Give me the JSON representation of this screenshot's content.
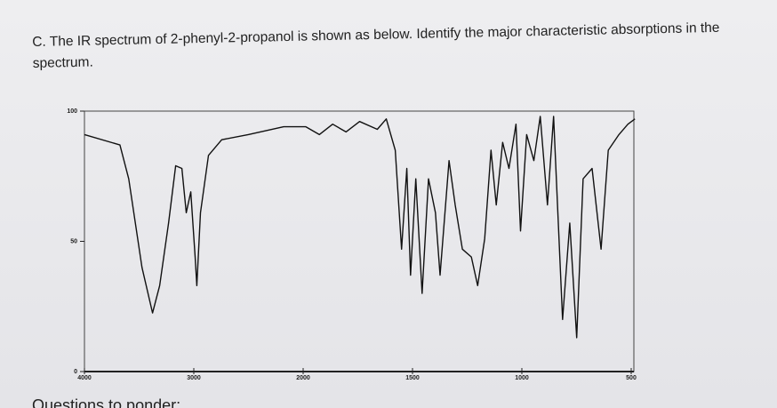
{
  "heading": "C. The IR spectrum of 2-phenyl-2-propanol is shown as below. Identify the major characteristic absorptions in the spectrum.",
  "footer": "Questions to ponder:",
  "chart_data": {
    "type": "line",
    "x": [
      4000,
      3676,
      3595,
      3474,
      3377,
      3312,
      3231,
      3166,
      3109,
      3069,
      3028,
      2988,
      2972,
      2939,
      2866,
      2745,
      2502,
      2178,
      1988,
      1926,
      1865,
      1804,
      1742,
      1661,
      1620,
      1579,
      1550,
      1526,
      1509,
      1485,
      1456,
      1427,
      1395,
      1374,
      1333,
      1305,
      1272,
      1231,
      1202,
      1170,
      1141,
      1117,
      1088,
      1059,
      1027,
      1006,
      978,
      945,
      916,
      883,
      855,
      814,
      781,
      749,
      720,
      679,
      638,
      605,
      556,
      515,
      483
    ],
    "series": [
      {
        "color": "#111111",
        "values": [
          91,
          87,
          74,
          40,
          22.5,
          33,
          57,
          79,
          78,
          61,
          69,
          44,
          33,
          61,
          83,
          89,
          91,
          94,
          94,
          91,
          95,
          92,
          96,
          93,
          97,
          85,
          47,
          78,
          37,
          74,
          30,
          74,
          61,
          37,
          81,
          64,
          47,
          44,
          33,
          51,
          85,
          64,
          88,
          78,
          95,
          54,
          91,
          81,
          98,
          64,
          98,
          20,
          57,
          13,
          74,
          78,
          47,
          85,
          91,
          95,
          97
        ]
      }
    ],
    "xlim": [
      4000,
      467
    ],
    "xticks": [
      4000,
      3000,
      2000,
      1500,
      1000,
      500
    ],
    "ylim": [
      0,
      100
    ],
    "yticks": [
      0,
      50,
      100
    ]
  }
}
